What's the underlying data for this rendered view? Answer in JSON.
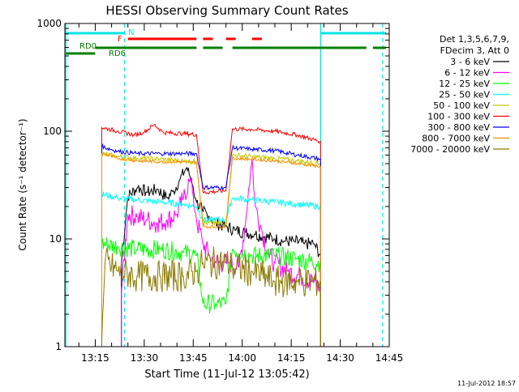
{
  "chart_data": {
    "type": "line",
    "title": "HESSI Observing Summary Count Rates",
    "xlabel": "Start Time (11-Jul-12 13:05:42)",
    "ylabel": "Count Rate (s⁻¹ detector⁻¹)",
    "yscale": "log",
    "ylim": [
      1,
      1000
    ],
    "xlim": [
      "13:05:42",
      "14:45:00"
    ],
    "x_ticks": [
      "13:15",
      "13:30",
      "13:45",
      "14:00",
      "14:15",
      "14:30",
      "14:45"
    ],
    "y_ticks": [
      "1",
      "10",
      "100",
      "1000"
    ],
    "grid": false,
    "legend_position": "right",
    "legend_header": [
      "Det 1,3,5,6,7,9,",
      "FDecim 3, Att 0"
    ],
    "footer_timestamp": "11-Jul-2012 18:57",
    "flag_labels": {
      "N": "N",
      "F": "F",
      "RD0": "RD0",
      "RD6": "RD6"
    },
    "flags": {
      "N": {
        "color": "#00e5e5",
        "segments": [
          [
            "13:06",
            "13:24"
          ],
          [
            "14:24",
            "14:44"
          ]
        ]
      },
      "F": {
        "color": "#ff0000",
        "segments": [
          [
            "13:25",
            "13:46"
          ],
          [
            "13:48",
            "13:51"
          ],
          [
            "13:55",
            "13:58"
          ],
          [
            "14:03",
            "14:06"
          ]
        ]
      },
      "RD0": {
        "color": "#008000",
        "segments": [
          [
            "13:06",
            "13:15"
          ]
        ]
      },
      "RD6": {
        "color": "#008000",
        "segments": [
          [
            "13:15",
            "13:46"
          ],
          [
            "13:48",
            "13:54"
          ],
          [
            "13:57",
            "14:38"
          ],
          [
            "14:40",
            "14:44"
          ]
        ]
      }
    },
    "vlines": [
      {
        "time": "13:06",
        "color": "#00e5e5",
        "style": "solid"
      },
      {
        "time": "13:24",
        "color": "#00e5e5",
        "style": "dashed"
      },
      {
        "time": "14:24",
        "color": "#00e5e5",
        "style": "solid"
      },
      {
        "time": "14:43",
        "color": "#00e5e5",
        "style": "dashed"
      }
    ],
    "series": [
      {
        "name": "3 - 6 keV",
        "color": "#000000",
        "noise": 0.12,
        "points": [
          [
            "13:23",
            6
          ],
          [
            "13:25",
            25
          ],
          [
            "13:28",
            30
          ],
          [
            "13:31",
            27
          ],
          [
            "13:34",
            29
          ],
          [
            "13:37",
            24
          ],
          [
            "13:39",
            28
          ],
          [
            "13:41",
            36
          ],
          [
            "13:43",
            46
          ],
          [
            "13:44",
            38
          ],
          [
            "13:45",
            30
          ],
          [
            "13:46",
            22
          ],
          [
            "13:48",
            18
          ],
          [
            "13:50",
            16
          ],
          [
            "13:52",
            14
          ],
          [
            "13:55",
            13
          ],
          [
            "13:58",
            12
          ],
          [
            "14:01",
            11.5
          ],
          [
            "14:04",
            11
          ],
          [
            "14:07",
            10.5
          ],
          [
            "14:10",
            10
          ],
          [
            "14:13",
            9.5
          ],
          [
            "14:16",
            9.5
          ],
          [
            "14:19",
            9
          ],
          [
            "14:22",
            9
          ],
          [
            "14:24",
            7
          ]
        ]
      },
      {
        "name": "6 - 12 keV",
        "color": "#ff00ff",
        "noise": 0.2,
        "points": [
          [
            "13:23",
            3.2
          ],
          [
            "13:25",
            17
          ],
          [
            "13:28",
            16
          ],
          [
            "13:31",
            15
          ],
          [
            "13:34",
            14
          ],
          [
            "13:37",
            15
          ],
          [
            "13:40",
            17
          ],
          [
            "13:42",
            24
          ],
          [
            "13:44",
            36
          ],
          [
            "13:45",
            25
          ],
          [
            "13:46",
            15
          ],
          [
            "13:48",
            9
          ],
          [
            "13:50",
            7
          ],
          [
            "13:52",
            6
          ],
          [
            "13:56",
            6
          ],
          [
            "13:59",
            5.5
          ],
          [
            "14:01",
            14
          ],
          [
            "14:02",
            30
          ],
          [
            "14:03",
            55
          ],
          [
            "14:04",
            20
          ],
          [
            "14:06",
            12
          ],
          [
            "14:08",
            7
          ],
          [
            "14:10",
            6
          ],
          [
            "14:14",
            5
          ],
          [
            "14:18",
            4.5
          ],
          [
            "14:22",
            4
          ],
          [
            "14:24",
            3.5
          ]
        ]
      },
      {
        "name": "12 - 25 keV",
        "color": "#00ff00",
        "noise": 0.18,
        "points": [
          [
            "13:17",
            9
          ],
          [
            "13:22",
            8.5
          ],
          [
            "13:28",
            8
          ],
          [
            "13:35",
            8
          ],
          [
            "13:42",
            7.5
          ],
          [
            "13:46",
            7
          ],
          [
            "13:48",
            2.5
          ],
          [
            "13:52",
            2.5
          ],
          [
            "13:55",
            2.5
          ],
          [
            "13:57",
            8
          ],
          [
            "14:03",
            7
          ],
          [
            "14:10",
            7
          ],
          [
            "14:17",
            6.5
          ],
          [
            "14:24",
            6
          ]
        ]
      },
      {
        "name": "25 - 50 keV",
        "color": "#00ffff",
        "noise": 0.06,
        "points": [
          [
            "13:17",
            26
          ],
          [
            "13:22",
            24
          ],
          [
            "13:28",
            23
          ],
          [
            "13:35",
            22
          ],
          [
            "13:42",
            21
          ],
          [
            "13:46",
            20
          ],
          [
            "13:48",
            15
          ],
          [
            "13:55",
            15
          ],
          [
            "13:57",
            24
          ],
          [
            "14:03",
            23
          ],
          [
            "14:10",
            22
          ],
          [
            "14:17",
            21
          ],
          [
            "14:24",
            20
          ]
        ]
      },
      {
        "name": "50 - 100 keV",
        "color": "#c8c800",
        "noise": 0.05,
        "points": [
          [
            "13:17",
            62
          ],
          [
            "13:22",
            58
          ],
          [
            "13:28",
            56
          ],
          [
            "13:35",
            55
          ],
          [
            "13:42",
            53
          ],
          [
            "13:46",
            52
          ],
          [
            "13:48",
            14
          ],
          [
            "13:55",
            14
          ],
          [
            "13:57",
            60
          ],
          [
            "14:03",
            58
          ],
          [
            "14:10",
            56
          ],
          [
            "14:17",
            53
          ],
          [
            "14:24",
            50
          ]
        ]
      },
      {
        "name": "100 - 300 keV",
        "color": "#ff0000",
        "noise": 0.04,
        "points": [
          [
            "13:17",
            108
          ],
          [
            "13:22",
            100
          ],
          [
            "13:27",
            92
          ],
          [
            "13:30",
            98
          ],
          [
            "13:33",
            115
          ],
          [
            "13:36",
            97
          ],
          [
            "13:42",
            95
          ],
          [
            "13:46",
            93
          ],
          [
            "13:48",
            27
          ],
          [
            "13:55",
            28
          ],
          [
            "13:57",
            105
          ],
          [
            "14:03",
            104
          ],
          [
            "14:10",
            100
          ],
          [
            "14:17",
            92
          ],
          [
            "14:24",
            80
          ]
        ]
      },
      {
        "name": "300 - 800 keV",
        "color": "#0000ff",
        "noise": 0.04,
        "points": [
          [
            "13:17",
            72
          ],
          [
            "13:22",
            65
          ],
          [
            "13:28",
            62
          ],
          [
            "13:35",
            62
          ],
          [
            "13:42",
            62
          ],
          [
            "13:46",
            62
          ],
          [
            "13:48",
            30
          ],
          [
            "13:55",
            30
          ],
          [
            "13:57",
            70
          ],
          [
            "14:03",
            68
          ],
          [
            "14:10",
            66
          ],
          [
            "14:17",
            60
          ],
          [
            "14:24",
            55
          ]
        ]
      },
      {
        "name": "800 - 7000 keV",
        "color": "#ff8c00",
        "noise": 0.03,
        "points": [
          [
            "13:17",
            62
          ],
          [
            "13:22",
            56
          ],
          [
            "13:28",
            53
          ],
          [
            "13:35",
            52
          ],
          [
            "13:42",
            52
          ],
          [
            "13:46",
            51
          ],
          [
            "13:48",
            13
          ],
          [
            "13:55",
            13
          ],
          [
            "13:57",
            56
          ],
          [
            "14:03",
            55
          ],
          [
            "14:10",
            53
          ],
          [
            "14:17",
            50
          ],
          [
            "14:24",
            47
          ]
        ]
      },
      {
        "name": "7000 - 20000 keV",
        "color": "#8b7a00",
        "noise": 0.3,
        "points": [
          [
            "13:17",
            1.1
          ],
          [
            "13:18",
            6
          ],
          [
            "13:22",
            5
          ],
          [
            "13:28",
            4.5
          ],
          [
            "13:35",
            4.5
          ],
          [
            "13:42",
            4.5
          ],
          [
            "13:46",
            5
          ],
          [
            "13:48",
            6
          ],
          [
            "13:55",
            6
          ],
          [
            "13:57",
            5.5
          ],
          [
            "14:03",
            5
          ],
          [
            "14:10",
            4
          ],
          [
            "14:17",
            4
          ],
          [
            "14:24",
            4
          ]
        ]
      }
    ]
  }
}
